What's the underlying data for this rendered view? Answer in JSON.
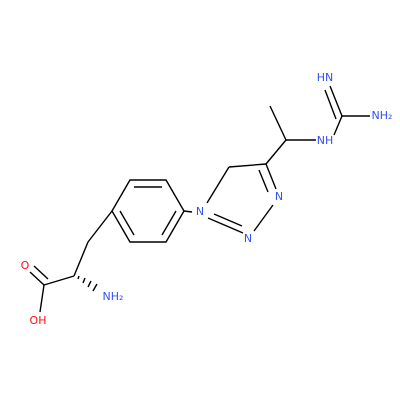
{
  "atoms": {
    "imine_nh": "HN",
    "guanidine_nh2": "NH₂",
    "guanidine_nh": "NH",
    "triazole_n1": "N",
    "triazole_n3": "N",
    "triazole_n2": "N",
    "carbonyl_o": "O",
    "hydroxyl": "OH",
    "amine_nh2": "NH₂"
  }
}
